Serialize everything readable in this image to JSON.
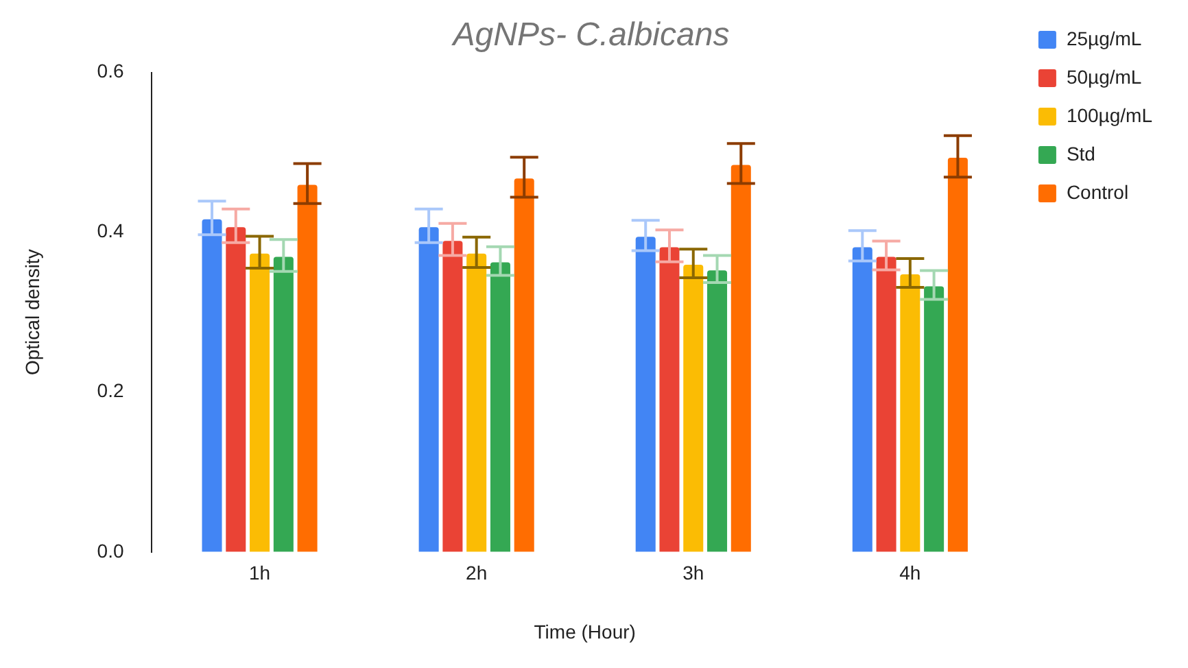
{
  "chart_data": {
    "type": "bar",
    "title": "AgNPs- C.albicans",
    "xlabel": "Time (Hour)",
    "ylabel": "Optical density",
    "categories": [
      "1h",
      "2h",
      "3h",
      "4h"
    ],
    "series": [
      {
        "name": "25µg/mL",
        "color": "#4285f4",
        "values": [
          0.418,
          0.408,
          0.396,
          0.383
        ],
        "errors": [
          0.021,
          0.021,
          0.019,
          0.019
        ]
      },
      {
        "name": "50µg/mL",
        "color": "#ea4335",
        "values": [
          0.408,
          0.391,
          0.383,
          0.371
        ],
        "errors": [
          0.021,
          0.02,
          0.02,
          0.018
        ]
      },
      {
        "name": "100µg/mL",
        "color": "#fbbc04",
        "values": [
          0.375,
          0.375,
          0.361,
          0.349
        ],
        "errors": [
          0.02,
          0.019,
          0.018,
          0.018
        ]
      },
      {
        "name": "Std",
        "color": "#34a853",
        "values": [
          0.371,
          0.364,
          0.354,
          0.334
        ],
        "errors": [
          0.02,
          0.018,
          0.017,
          0.018
        ]
      },
      {
        "name": "Control",
        "color": "#ff6d01",
        "values": [
          0.461,
          0.469,
          0.486,
          0.495
        ],
        "errors": [
          0.025,
          0.025,
          0.025,
          0.026
        ]
      }
    ],
    "ylim": [
      0,
      0.6
    ],
    "yticks": [
      {
        "value": 0,
        "label": "0.0"
      },
      {
        "value": 0.2,
        "label": "0.2"
      },
      {
        "value": 0.4,
        "label": "0.4"
      },
      {
        "value": 0.6,
        "label": "0.6"
      }
    ],
    "grid": false,
    "legend": "top right"
  }
}
